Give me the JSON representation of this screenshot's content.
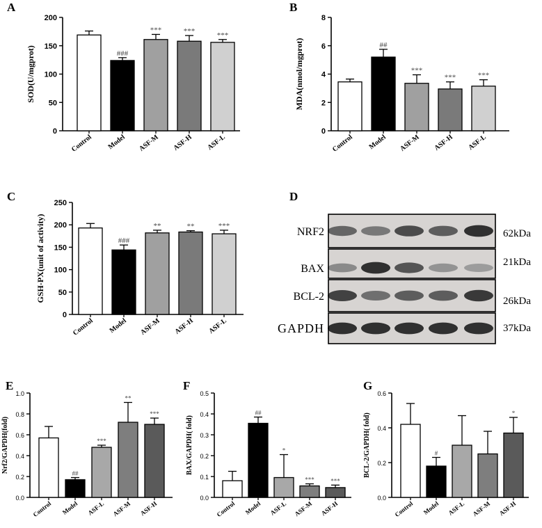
{
  "chart_data": [
    {
      "panel": "A",
      "type": "bar",
      "ylabel": "SOD(U/mgprot)",
      "ylim": [
        0,
        200
      ],
      "yticks": [
        0,
        50,
        100,
        150,
        200
      ],
      "categories": [
        "Control",
        "Model",
        "ASF-M",
        "ASF-H",
        "ASF-L"
      ],
      "values": [
        169,
        124,
        161,
        158,
        156
      ],
      "errors": [
        7,
        5,
        9,
        10,
        5
      ],
      "labels": [
        "",
        "###",
        "***",
        "***",
        "***"
      ],
      "colors": [
        "#ffffff",
        "#000000",
        "#a0a0a0",
        "#7a7a7a",
        "#d0d0d0"
      ]
    },
    {
      "panel": "B",
      "type": "bar",
      "ylabel": "MDA(nmol/mgprot)",
      "ylim": [
        0,
        8
      ],
      "yticks": [
        0,
        2,
        4,
        6,
        8
      ],
      "categories": [
        "Control",
        "Model",
        "ASF-M",
        "ASF-H",
        "ASF-L"
      ],
      "values": [
        3.45,
        5.2,
        3.35,
        2.95,
        3.15
      ],
      "errors": [
        0.2,
        0.55,
        0.6,
        0.5,
        0.45
      ],
      "labels": [
        "",
        "##",
        "***",
        "***",
        "***"
      ],
      "colors": [
        "#ffffff",
        "#000000",
        "#a0a0a0",
        "#7a7a7a",
        "#d0d0d0"
      ]
    },
    {
      "panel": "C",
      "type": "bar",
      "ylabel": "GSH-PX(unit of activity)",
      "ylim": [
        0,
        250
      ],
      "yticks": [
        0,
        50,
        100,
        150,
        200,
        250
      ],
      "categories": [
        "Control",
        "Model",
        "ASF-M",
        "ASF-H",
        "ASF-L"
      ],
      "values": [
        193,
        144,
        182,
        184,
        180
      ],
      "errors": [
        10,
        11,
        6,
        3,
        8
      ],
      "labels": [
        "",
        "###",
        "**",
        "**",
        "***"
      ],
      "colors": [
        "#ffffff",
        "#000000",
        "#a0a0a0",
        "#7a7a7a",
        "#d0d0d0"
      ]
    },
    {
      "panel": "E",
      "type": "bar",
      "ylabel": "Nrf2/GAPDH(fold)",
      "ylim": [
        0,
        1.0
      ],
      "yticks": [
        0.0,
        0.2,
        0.4,
        0.6,
        0.8,
        1.0
      ],
      "categories": [
        "Control",
        "Model",
        "ASF-L",
        "ASF-M",
        "ASF-H"
      ],
      "values": [
        0.57,
        0.17,
        0.48,
        0.72,
        0.7
      ],
      "errors": [
        0.11,
        0.02,
        0.02,
        0.19,
        0.06
      ],
      "labels": [
        "",
        "##",
        "***",
        "**",
        "***"
      ],
      "colors": [
        "#ffffff",
        "#000000",
        "#a8a8a8",
        "#7e7e7e",
        "#5a5a5a"
      ]
    },
    {
      "panel": "F",
      "type": "bar",
      "ylabel": "BAX/GAPDH( fold)",
      "ylim": [
        0,
        0.5
      ],
      "yticks": [
        0.0,
        0.1,
        0.2,
        0.3,
        0.4,
        0.5
      ],
      "categories": [
        "Control",
        "Model",
        "ASF-L",
        "ASF-M",
        "ASF-H"
      ],
      "values": [
        0.08,
        0.355,
        0.095,
        0.055,
        0.047
      ],
      "errors": [
        0.045,
        0.03,
        0.11,
        0.01,
        0.012
      ],
      "labels": [
        "",
        "##",
        "*",
        "***",
        "***"
      ],
      "colors": [
        "#ffffff",
        "#000000",
        "#a8a8a8",
        "#7e7e7e",
        "#5a5a5a"
      ]
    },
    {
      "panel": "G",
      "type": "bar",
      "ylabel": "BCL-2/GAPDH( fold)",
      "ylim": [
        0,
        0.6
      ],
      "yticks": [
        0.0,
        0.2,
        0.4,
        0.6
      ],
      "categories": [
        "Control",
        "Model",
        "ASF-L",
        "ASF-M",
        "ASF-H"
      ],
      "values": [
        0.42,
        0.18,
        0.3,
        0.25,
        0.37
      ],
      "errors": [
        0.12,
        0.05,
        0.17,
        0.13,
        0.09
      ],
      "labels": [
        "",
        "#",
        "",
        "",
        "*"
      ],
      "colors": [
        "#ffffff",
        "#000000",
        "#a8a8a8",
        "#7e7e7e",
        "#5a5a5a"
      ]
    }
  ],
  "western_blot": {
    "panel": "D",
    "rows": [
      {
        "protein": "NRF2",
        "size": "62kDa",
        "intensity": [
          0.55,
          0.45,
          0.7,
          0.6,
          0.85
        ]
      },
      {
        "protein": "BAX",
        "size": "21kDa",
        "intensity": [
          0.35,
          0.85,
          0.65,
          0.3,
          0.25
        ]
      },
      {
        "protein": "BCL-2",
        "size": "26kDa",
        "intensity": [
          0.75,
          0.5,
          0.6,
          0.6,
          0.8
        ]
      },
      {
        "protein": "GAPDH",
        "size": "37kDa",
        "intensity": [
          0.85,
          0.85,
          0.85,
          0.85,
          0.85
        ]
      }
    ]
  }
}
